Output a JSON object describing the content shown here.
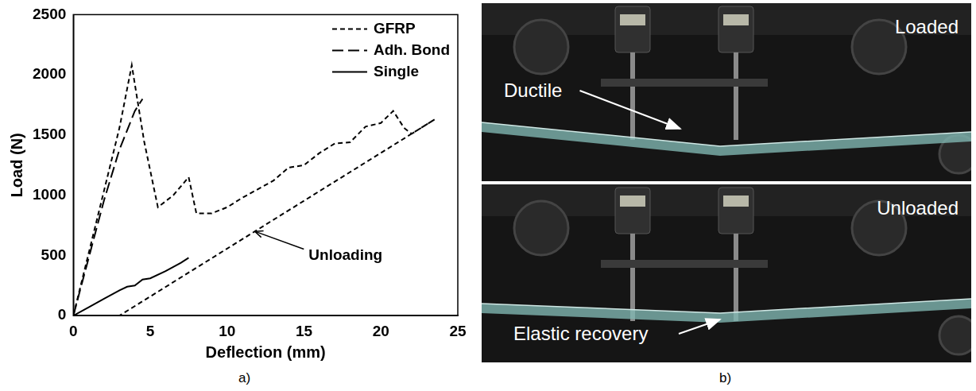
{
  "chart_data": {
    "type": "line",
    "x_label": "Deflection (mm)",
    "y_label": "Load (N)",
    "xlim": [
      0,
      25
    ],
    "xticks": [
      0,
      5,
      10,
      15,
      20,
      25
    ],
    "ylim": [
      0,
      2500
    ],
    "yticks": [
      0,
      500,
      1000,
      1500,
      2000,
      2500
    ],
    "grid": false,
    "legend": "upper right",
    "series": [
      {
        "name": "GFRP",
        "color": "#000000",
        "line_style": "dashed",
        "x": [
          0,
          1,
          2,
          3,
          3.8,
          4.6,
          5.5,
          6.5,
          7.5,
          8,
          9,
          10,
          11,
          12,
          13,
          14,
          15,
          16,
          17,
          18,
          19,
          20,
          20.8,
          21.5,
          22,
          23.5,
          3
        ],
        "values": [
          0,
          520,
          1040,
          1560,
          2080,
          1450,
          900,
          1000,
          1150,
          850,
          850,
          900,
          980,
          1050,
          1120,
          1230,
          1250,
          1350,
          1430,
          1440,
          1570,
          1600,
          1700,
          1560,
          1510,
          1630,
          0
        ]
      },
      {
        "name": "Adh. Bond",
        "color": "#000000",
        "line_style": "longdash",
        "x": [
          0,
          1,
          2,
          3,
          4,
          4.5
        ],
        "values": [
          0,
          480,
          960,
          1380,
          1700,
          1800
        ]
      },
      {
        "name": "Single",
        "color": "#000000",
        "line_style": "solid",
        "x": [
          0,
          1,
          2,
          3,
          3.5,
          4,
          4.5,
          5,
          6,
          7,
          7.5
        ],
        "values": [
          0,
          70,
          140,
          210,
          240,
          250,
          300,
          310,
          370,
          440,
          480
        ]
      }
    ],
    "annotations": [
      {
        "text": "Unloading",
        "x": 15.3,
        "y": 500,
        "arrow_x": 11.8,
        "arrow_y": 700
      }
    ]
  },
  "panel_labels": [
    "a)",
    "b)"
  ],
  "photo": {
    "panels": [
      {
        "label": "Loaded",
        "callout": "Ductile"
      },
      {
        "label": "Unloaded",
        "callout": "Elastic recovery"
      }
    ]
  }
}
